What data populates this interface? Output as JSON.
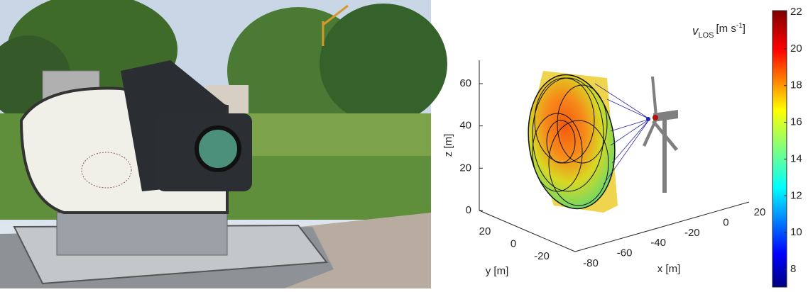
{
  "plot": {
    "z_axis": {
      "label": "z [m]",
      "ticks": [
        0,
        20,
        40,
        60
      ]
    },
    "y_axis": {
      "label": "y [m]",
      "ticks": [
        20,
        0,
        -20
      ]
    },
    "x_axis": {
      "label": "x [m]",
      "ticks": [
        -80,
        -60,
        -40,
        -20,
        0,
        20
      ]
    },
    "colorbar": {
      "label": {
        "symbol": "v",
        "subscript": "LOS",
        "unit_prefix": "[m s",
        "unit_exponent": "-1",
        "unit_suffix": "]"
      },
      "ticks": [
        22,
        20,
        18,
        16,
        14,
        12,
        10,
        8
      ]
    }
  }
}
